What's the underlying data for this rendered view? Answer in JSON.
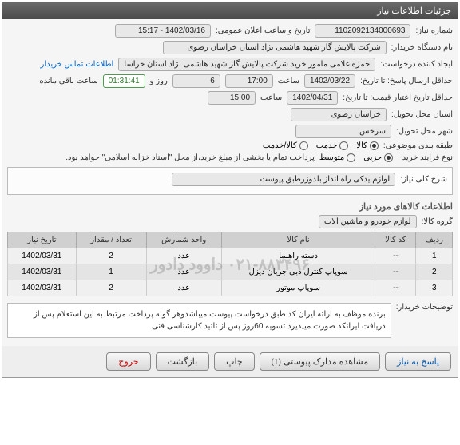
{
  "panel": {
    "title": "جزئیات اطلاعات نیاز"
  },
  "form": {
    "need_no_label": "شماره نیاز:",
    "need_no": "1102092134000693",
    "announce_label": "تاریخ و ساعت اعلان عمومی:",
    "announce_value": "1402/03/16 - 15:17",
    "buyer_org_label": "نام دستگاه خریدار:",
    "buyer_org": "شرکت پالایش گاز شهید هاشمی نژاد   استان خراسان رضوی",
    "creator_label": "ایجاد کننده درخواست:",
    "creator": "حمزه غلامی مامور خرید شرکت پالایش گاز شهید هاشمی نژاد   استان خراسا",
    "contact_link": "اطلاعات تماس خریدار",
    "deadline_label": "حداقل ارسال پاسخ:   تا تاریخ:",
    "deadline_date": "1402/03/22",
    "time_label": "ساعت",
    "deadline_time": "17:00",
    "days": "6",
    "days_label": "روز و",
    "countdown": "01:31:41",
    "remain_label": "ساعت باقی مانده",
    "validity_label": "حداقل تاریخ اعتبار قیمت: تا تاریخ:",
    "validity_date": "1402/04/31",
    "validity_time": "15:00",
    "delivery_prov_label": "استان محل تحویل:",
    "delivery_prov": "خراسان رضوی",
    "delivery_city_label": "شهر محل تحویل:",
    "delivery_city": "سرخس",
    "category_label": "طبقه بندی موضوعی:",
    "cat_goods": "کالا",
    "cat_service": "خدمت",
    "cat_both": "کالا/خدمت",
    "process_label": "نوع فرآیند خرید :",
    "proc_small": "جزیی",
    "proc_medium": "متوسط",
    "proc_note": "پرداخت تمام یا بخشی از مبلغ خرید،از محل \"اسناد خزانه اسلامی\" خواهد بود.",
    "desc_label": "شرح کلی نیاز:",
    "desc_value": "لوازم یدکی راه انداز بلدوزرطبق پیوست",
    "items_title": "اطلاعات کالاهای مورد نیاز",
    "group_label": "گروه کالا:",
    "group_value": "لوازم خودرو و ماشین آلات",
    "buyer_notes_label": "توضیحات خریدار:",
    "buyer_notes": "برنده موظف به ارائه ایران کد طبق درخواست پیوست میباشدوهر گونه پرداخت مرتبط به این استعلام پس از دریافت ایرانکد صورت میپذیرد تسویه 60روز پس از تائید کارشناسی فنی"
  },
  "table": {
    "headers": {
      "row": "ردیف",
      "code": "کد کالا",
      "name": "نام کالا",
      "unit": "واحد شمارش",
      "qty": "تعداد / مقدار",
      "date": "تاریخ نیاز"
    },
    "rows": [
      {
        "n": "1",
        "code": "--",
        "name": "دسته راهنما",
        "unit": "عدد",
        "qty": "2",
        "date": "1402/03/31"
      },
      {
        "n": "2",
        "code": "--",
        "name": "سوپاپ کنترل دبی جریان دیزل",
        "unit": "عدد",
        "qty": "1",
        "date": "1402/03/31"
      },
      {
        "n": "3",
        "code": "--",
        "name": "سوپاپ موتور",
        "unit": "عدد",
        "qty": "2",
        "date": "1402/03/31"
      }
    ],
    "watermark": "۰۲۱-۸۸۳۴۹۶   داوود   دادور"
  },
  "buttons": {
    "reply": "پاسخ به نیاز",
    "attachments": "مشاهده مدارک پیوستی",
    "attachments_count": "(1)",
    "print": "چاپ",
    "back": "بازگشت",
    "exit": "خروج"
  }
}
